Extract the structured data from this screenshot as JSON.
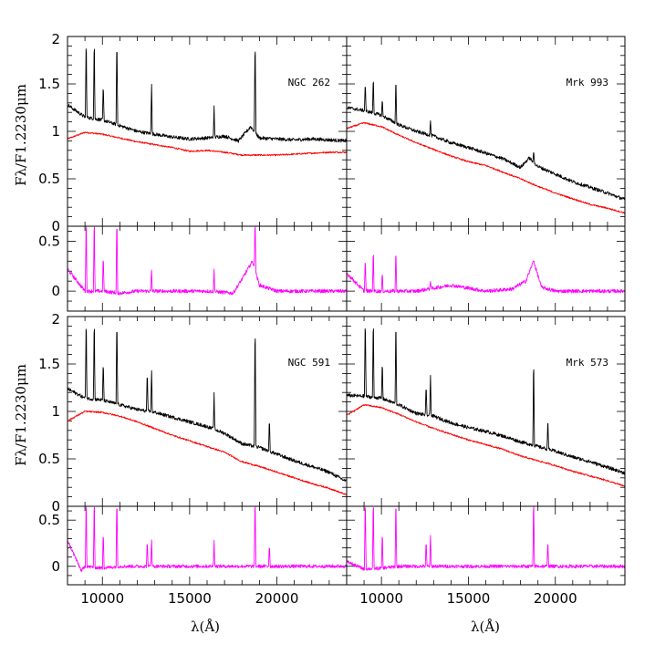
{
  "chart_data": {
    "type": "line",
    "xlabel": "λ(Å)",
    "ylabel_main": "Fλ/F1.2230μm",
    "x_range": [
      8000,
      24000
    ],
    "x_ticks": [
      10000,
      15000,
      20000
    ],
    "x_tick_labels": [
      "10000",
      "15000",
      "20000"
    ],
    "spectrum_ylim": [
      0,
      2
    ],
    "spectrum_y_ticks": [
      0,
      0.5,
      1,
      1.5,
      2
    ],
    "spectrum_y_tick_labels": [
      "0",
      "0.5",
      "1",
      "1.5",
      "2"
    ],
    "residual_ylim": [
      -0.2,
      0.65
    ],
    "residual_y_ticks": [
      0,
      0.5
    ],
    "residual_y_tick_labels": [
      "0",
      "0.5"
    ],
    "colors": {
      "observed": "#000000",
      "model": "#ff0000",
      "residual": "#ff00ff"
    },
    "panels": [
      {
        "name": "NGC 262",
        "observed_continuum": {
          "x": [
            8000,
            9000,
            10000,
            11000,
            12000,
            13000,
            14000,
            15000,
            16000,
            17000,
            17800,
            18500,
            19000,
            20000,
            21000,
            22000,
            23000,
            24000
          ],
          "y": [
            1.28,
            1.15,
            1.12,
            1.06,
            1.0,
            0.97,
            0.94,
            0.92,
            0.93,
            0.95,
            0.9,
            1.05,
            0.93,
            0.92,
            0.91,
            0.92,
            0.91,
            0.9
          ]
        },
        "model_continuum": {
          "x": [
            8000,
            9000,
            10000,
            11000,
            12000,
            13000,
            14000,
            15000,
            16000,
            17000,
            18000,
            19000,
            20000,
            21000,
            22000,
            23000,
            24000
          ],
          "y": [
            0.92,
            0.99,
            0.97,
            0.93,
            0.89,
            0.86,
            0.83,
            0.79,
            0.8,
            0.78,
            0.75,
            0.75,
            0.75,
            0.76,
            0.77,
            0.78,
            0.78
          ]
        },
        "emission_lines": [
          {
            "x": 9069,
            "obs": 2.05,
            "res": 0.8
          },
          {
            "x": 9531,
            "obs": 2.05,
            "res": 0.8
          },
          {
            "x": 10049,
            "obs": 1.52,
            "res": 0.38
          },
          {
            "x": 10830,
            "obs": 2.05,
            "res": 0.8
          },
          {
            "x": 12818,
            "obs": 1.52,
            "res": 0.22
          },
          {
            "x": 16400,
            "obs": 1.27,
            "res": 0.22
          },
          {
            "x": 18751,
            "obs": 2.05,
            "res": 0.75
          }
        ],
        "residual_continuum": {
          "x": [
            8000,
            9000,
            10000,
            11000,
            12000,
            14000,
            16000,
            17500,
            18000,
            18600,
            19000,
            20000,
            22000,
            24000
          ],
          "y": [
            0.22,
            0.0,
            0.0,
            -0.02,
            0.0,
            0.0,
            0.0,
            -0.02,
            0.12,
            0.3,
            0.06,
            0.0,
            0.0,
            0.0
          ]
        }
      },
      {
        "name": "Mrk 993",
        "observed_continuum": {
          "x": [
            8000,
            9000,
            10000,
            11000,
            12000,
            13000,
            14000,
            15000,
            16000,
            17000,
            18000,
            18500,
            19000,
            20000,
            21000,
            22000,
            23000,
            24000
          ],
          "y": [
            1.25,
            1.22,
            1.17,
            1.07,
            1.0,
            0.95,
            0.88,
            0.83,
            0.77,
            0.71,
            0.62,
            0.72,
            0.63,
            0.55,
            0.47,
            0.41,
            0.35,
            0.28
          ]
        },
        "model_continuum": {
          "x": [
            8000,
            9000,
            10000,
            11000,
            12000,
            13000,
            14000,
            15000,
            16000,
            17000,
            18000,
            19000,
            20000,
            21000,
            22000,
            23000,
            24000
          ],
          "y": [
            1.03,
            1.09,
            1.05,
            0.96,
            0.88,
            0.81,
            0.74,
            0.68,
            0.64,
            0.57,
            0.5,
            0.42,
            0.35,
            0.29,
            0.23,
            0.19,
            0.14
          ]
        },
        "emission_lines": [
          {
            "x": 9069,
            "obs": 1.53,
            "res": 0.35
          },
          {
            "x": 9531,
            "obs": 1.6,
            "res": 0.45
          },
          {
            "x": 10049,
            "obs": 1.35,
            "res": 0.2
          },
          {
            "x": 10830,
            "obs": 1.6,
            "res": 0.45
          },
          {
            "x": 12818,
            "obs": 1.12,
            "res": 0.1
          },
          {
            "x": 18751,
            "obs": 0.8,
            "res": 0.3
          }
        ],
        "residual_continuum": {
          "x": [
            8000,
            9000,
            10000,
            11000,
            12000,
            14000,
            16000,
            17500,
            18300,
            18750,
            19200,
            20000,
            22000,
            24000
          ],
          "y": [
            0.18,
            0.0,
            0.0,
            0.0,
            0.0,
            0.06,
            0.0,
            0.02,
            0.1,
            0.3,
            0.04,
            0.0,
            0.0,
            0.0
          ]
        }
      },
      {
        "name": "NGC 591",
        "observed_continuum": {
          "x": [
            8000,
            9000,
            10000,
            11000,
            12000,
            13000,
            14000,
            15000,
            16000,
            17000,
            18000,
            19000,
            20000,
            21000,
            22000,
            23000,
            24000
          ],
          "y": [
            1.24,
            1.14,
            1.12,
            1.07,
            1.02,
            0.99,
            0.94,
            0.89,
            0.84,
            0.77,
            0.66,
            0.62,
            0.55,
            0.48,
            0.42,
            0.36,
            0.26
          ]
        },
        "model_continuum": {
          "x": [
            8000,
            9000,
            10000,
            11000,
            12000,
            13000,
            14000,
            15000,
            16000,
            17000,
            18000,
            19000,
            20000,
            21000,
            22000,
            23000,
            24000
          ],
          "y": [
            0.9,
            1.0,
            0.99,
            0.95,
            0.89,
            0.82,
            0.75,
            0.69,
            0.63,
            0.57,
            0.47,
            0.42,
            0.36,
            0.3,
            0.24,
            0.19,
            0.12
          ]
        },
        "emission_lines": [
          {
            "x": 9069,
            "obs": 2.05,
            "res": 0.8
          },
          {
            "x": 9531,
            "obs": 2.05,
            "res": 0.8
          },
          {
            "x": 10049,
            "obs": 1.55,
            "res": 0.4
          },
          {
            "x": 10830,
            "obs": 2.05,
            "res": 0.8
          },
          {
            "x": 12570,
            "obs": 1.45,
            "res": 0.3
          },
          {
            "x": 12818,
            "obs": 1.45,
            "res": 0.3
          },
          {
            "x": 16400,
            "obs": 1.2,
            "res": 0.28
          },
          {
            "x": 18751,
            "obs": 2.05,
            "res": 0.8
          },
          {
            "x": 19570,
            "obs": 0.95,
            "res": 0.25
          }
        ],
        "residual_continuum": {
          "x": [
            8000,
            8800,
            9000,
            10000,
            11000,
            12000,
            14000,
            16000,
            18000,
            20000,
            22000,
            24000
          ],
          "y": [
            0.28,
            -0.05,
            0.0,
            -0.02,
            0.0,
            0.0,
            0.0,
            0.0,
            0.0,
            0.0,
            0.0,
            0.0
          ]
        }
      },
      {
        "name": "Mrk 573",
        "observed_continuum": {
          "x": [
            8000,
            9000,
            10000,
            11000,
            12000,
            13000,
            14000,
            15000,
            16000,
            17000,
            18000,
            19000,
            20000,
            21000,
            22000,
            23000,
            24000
          ],
          "y": [
            1.17,
            1.16,
            1.14,
            1.07,
            0.98,
            0.95,
            0.88,
            0.83,
            0.79,
            0.74,
            0.68,
            0.63,
            0.58,
            0.52,
            0.47,
            0.41,
            0.35
          ]
        },
        "model_continuum": {
          "x": [
            8000,
            9000,
            10000,
            11000,
            12000,
            13000,
            14000,
            15000,
            16000,
            17000,
            18000,
            19000,
            20000,
            21000,
            22000,
            23000,
            24000
          ],
          "y": [
            0.96,
            1.07,
            1.04,
            0.97,
            0.89,
            0.82,
            0.76,
            0.7,
            0.65,
            0.6,
            0.53,
            0.48,
            0.43,
            0.37,
            0.32,
            0.27,
            0.21
          ]
        },
        "emission_lines": [
          {
            "x": 9069,
            "obs": 2.05,
            "res": 0.8
          },
          {
            "x": 9531,
            "obs": 2.05,
            "res": 0.8
          },
          {
            "x": 10049,
            "obs": 1.55,
            "res": 0.4
          },
          {
            "x": 10830,
            "obs": 2.05,
            "res": 0.8
          },
          {
            "x": 12570,
            "obs": 1.3,
            "res": 0.3
          },
          {
            "x": 12818,
            "obs": 1.4,
            "res": 0.35
          },
          {
            "x": 18751,
            "obs": 1.64,
            "res": 0.8
          },
          {
            "x": 19570,
            "obs": 0.95,
            "res": 0.3
          }
        ],
        "residual_continuum": {
          "x": [
            8000,
            9000,
            10000,
            11000,
            12000,
            14000,
            16000,
            18000,
            20000,
            22000,
            24000
          ],
          "y": [
            0.05,
            -0.03,
            -0.02,
            0.0,
            0.0,
            0.0,
            0.0,
            0.0,
            0.0,
            0.0,
            0.0
          ]
        }
      }
    ]
  }
}
